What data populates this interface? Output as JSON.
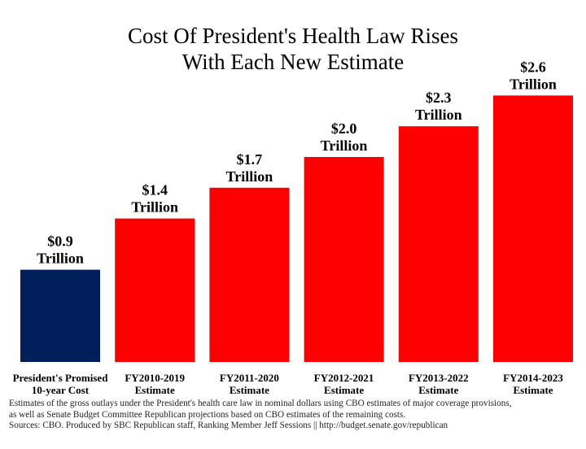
{
  "chart_data": {
    "type": "bar",
    "title": "Cost Of President's Health Law Rises With Each New Estimate",
    "title_lines": [
      "Cost Of President's Health Law Rises",
      "With Each New Estimate"
    ],
    "categories": [
      [
        "President's Promised",
        "10-year Cost"
      ],
      [
        "FY2010-2019",
        "Estimate"
      ],
      [
        "FY2011-2020",
        "Estimate"
      ],
      [
        "FY2012-2021",
        "Estimate"
      ],
      [
        "FY2013-2022",
        "Estimate"
      ],
      [
        "FY2014-2023",
        "Estimate"
      ]
    ],
    "values": [
      0.9,
      1.4,
      1.7,
      2.0,
      2.3,
      2.6
    ],
    "value_labels": [
      [
        "$0.9",
        "Trillion"
      ],
      [
        "$1.4",
        "Trillion"
      ],
      [
        "$1.7",
        "Trillion"
      ],
      [
        "$2.0",
        "Trillion"
      ],
      [
        "$2.3",
        "Trillion"
      ],
      [
        "$2.6",
        "Trillion"
      ]
    ],
    "units": "Trillion dollars",
    "colors": [
      "#001f5b",
      "#ff0000",
      "#ff0000",
      "#ff0000",
      "#ff0000",
      "#ff0000"
    ],
    "xlabel": "",
    "ylabel": "",
    "ylim": [
      0,
      3.4
    ],
    "grid": false,
    "legend": "none"
  },
  "notes": [
    "Estimates of the gross outlays under the President's health care law in nominal dollars using CBO estimates of major coverage provisions,",
    "as well as Senate Budget Committee Republican projections based on CBO estimates of the remaining costs.",
    "Sources: CBO. Produced by SBC Republican staff, Ranking Member Jeff Sessions || http://budget.senate.gov/republican"
  ]
}
